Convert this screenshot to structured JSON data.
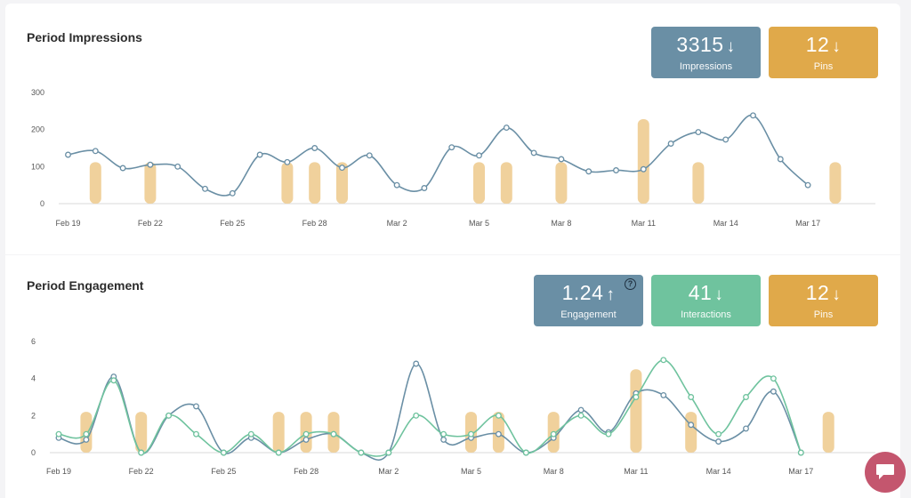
{
  "colors": {
    "impressions": "#6a8fa5",
    "interactions": "#6fc39e",
    "pins": "#e0a94a",
    "bars": "#f0d19c",
    "chat": "#c4566e"
  },
  "impressions_section": {
    "title": "Period Impressions",
    "stats": [
      {
        "value": "3315",
        "arrow": "↓",
        "label": "Impressions",
        "color": "#6a8fa5"
      },
      {
        "value": "12",
        "arrow": "↓",
        "label": "Pins",
        "color": "#e0a94a"
      }
    ]
  },
  "engagement_section": {
    "title": "Period Engagement",
    "stats": [
      {
        "value": "1.24",
        "arrow": "↑",
        "label": "Engagement",
        "color": "#6a8fa5",
        "help": "?"
      },
      {
        "value": "41",
        "arrow": "↓",
        "label": "Interactions",
        "color": "#6fc39e"
      },
      {
        "value": "12",
        "arrow": "↓",
        "label": "Pins",
        "color": "#e0a94a"
      }
    ]
  },
  "chat": {
    "icon": "chat-bubble-icon"
  },
  "chart_data": [
    {
      "type": "line",
      "x": [
        "Feb 19",
        "Feb 20",
        "Feb 21",
        "Feb 22",
        "Feb 23",
        "Feb 24",
        "Feb 25",
        "Feb 26",
        "Feb 27",
        "Feb 28",
        "Feb 29",
        "Mar 1",
        "Mar 2",
        "Mar 3",
        "Mar 4",
        "Mar 5",
        "Mar 6",
        "Mar 7",
        "Mar 8",
        "Mar 9",
        "Mar 10",
        "Mar 11",
        "Mar 12",
        "Mar 13",
        "Mar 14",
        "Mar 15",
        "Mar 16",
        "Mar 17"
      ],
      "xticks": [
        "Feb 19",
        "Feb 22",
        "Feb 25",
        "Feb 28",
        "Mar 2",
        "Mar 5",
        "Mar 8",
        "Mar 11",
        "Mar 14",
        "Mar 17"
      ],
      "xtick_index": [
        0,
        3,
        6,
        9,
        12,
        15,
        18,
        21,
        24,
        27
      ],
      "yticks": [
        "0",
        "100",
        "200",
        "300"
      ],
      "ylim": [
        0,
        300
      ],
      "series": [
        {
          "values": [
            132,
            142,
            96,
            105,
            100,
            40,
            28,
            132,
            112,
            150,
            97,
            130,
            50,
            42,
            152,
            130,
            205,
            137,
            120,
            87,
            90,
            93,
            162,
            193,
            173,
            238,
            120,
            50
          ],
          "color": "#6a8fa5"
        }
      ],
      "bars": {
        "index": [
          1,
          3,
          8,
          9,
          10,
          15,
          16,
          18,
          21,
          23,
          28
        ],
        "values": [
          112,
          112,
          112,
          112,
          112,
          112,
          112,
          112,
          228,
          112,
          112
        ],
        "color": "#f0d19c"
      },
      "grid": false
    },
    {
      "type": "line",
      "x": [
        "Feb 19",
        "Feb 20",
        "Feb 21",
        "Feb 22",
        "Feb 23",
        "Feb 24",
        "Feb 25",
        "Feb 26",
        "Feb 27",
        "Feb 28",
        "Feb 29",
        "Mar 1",
        "Mar 2",
        "Mar 3",
        "Mar 4",
        "Mar 5",
        "Mar 6",
        "Mar 7",
        "Mar 8",
        "Mar 9",
        "Mar 10",
        "Mar 11",
        "Mar 12",
        "Mar 13",
        "Mar 14",
        "Mar 15",
        "Mar 16",
        "Mar 17"
      ],
      "xticks": [
        "Feb 19",
        "Feb 22",
        "Feb 25",
        "Feb 28",
        "Mar 2",
        "Mar 5",
        "Mar 8",
        "Mar 11",
        "Mar 14",
        "Mar 17"
      ],
      "xtick_index": [
        0,
        3,
        6,
        9,
        12,
        15,
        18,
        21,
        24,
        27
      ],
      "yticks": [
        "0",
        "2",
        "4",
        "6"
      ],
      "ylim": [
        0,
        6
      ],
      "series": [
        {
          "values": [
            0.8,
            0.7,
            4.1,
            0,
            2,
            2.5,
            0,
            0.8,
            0,
            0.7,
            1,
            0,
            0,
            4.8,
            0.7,
            0.8,
            1,
            0,
            0.8,
            2.3,
            1.1,
            3.2,
            3.1,
            1.5,
            0.6,
            1.3,
            3.3,
            0
          ],
          "color": "#6a8fa5"
        },
        {
          "values": [
            1,
            1,
            3.9,
            0,
            2,
            1,
            0,
            1,
            0,
            1,
            1,
            0,
            0,
            2,
            1,
            1,
            2,
            0,
            1,
            2,
            1,
            3,
            5,
            3,
            1,
            3,
            4,
            0
          ],
          "color": "#6fc39e"
        }
      ],
      "bars": {
        "index": [
          1,
          3,
          8,
          9,
          10,
          15,
          16,
          18,
          21,
          23,
          28
        ],
        "values": [
          2.2,
          2.2,
          2.2,
          2.2,
          2.2,
          2.2,
          2.2,
          2.2,
          4.5,
          2.2,
          2.2
        ],
        "color": "#f0d19c"
      },
      "grid": false
    }
  ]
}
